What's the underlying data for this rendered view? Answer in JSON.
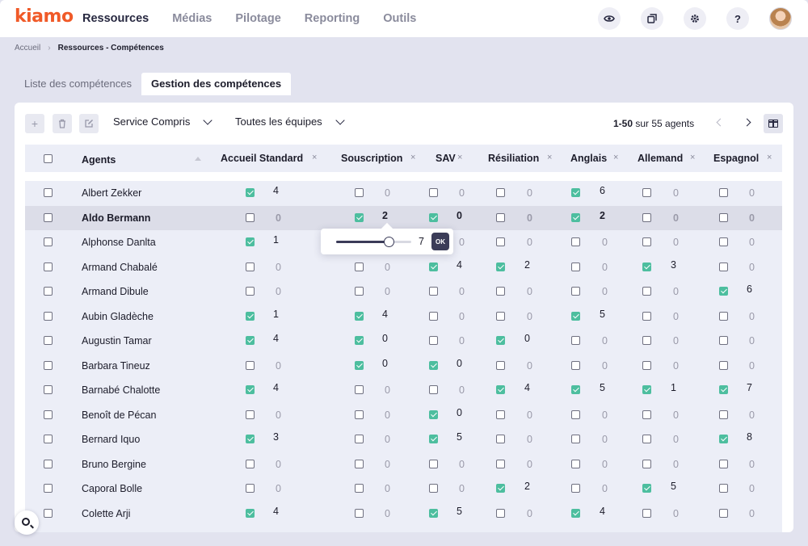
{
  "app": {
    "logo": "kiamo"
  },
  "nav": [
    "Ressources",
    "Médias",
    "Pilotage",
    "Reporting",
    "Outils"
  ],
  "icons": {
    "eye": "eye-icon",
    "windows": "windows-icon",
    "gear": "gear-icon",
    "help": "help-icon",
    "search": "search-icon",
    "columns": "columns-icon",
    "add": "plus-icon",
    "delete": "trash-icon",
    "edit": "edit-icon"
  },
  "top": {
    "help_label": "?"
  },
  "breadcrumb": {
    "home": "Accueil",
    "current": "Ressources - Compétences"
  },
  "tabs": [
    "Liste des compétences",
    "Gestion des compétences"
  ],
  "toolbar": {
    "service": "Service Compris",
    "teams": "Toutes les équipes",
    "pagination_range": "1-50",
    "pagination_suffix": "sur 55 agents"
  },
  "table": {
    "agent_header": "Agents",
    "columns": [
      "Accueil Standard",
      "Souscription",
      "SAV",
      "Résiliation",
      "Anglais",
      "Allemand",
      "Espagnol"
    ],
    "rows": [
      {
        "name": "Albert Zekker",
        "cells": [
          [
            1,
            "4"
          ],
          [
            0,
            "0"
          ],
          [
            0,
            "0"
          ],
          [
            0,
            "0"
          ],
          [
            1,
            "6"
          ],
          [
            0,
            "0"
          ],
          [
            0,
            "0"
          ]
        ]
      },
      {
        "name": "Aldo Bermann",
        "cells": [
          [
            0,
            "0"
          ],
          [
            1,
            "2"
          ],
          [
            1,
            "0"
          ],
          [
            0,
            "0"
          ],
          [
            1,
            "2"
          ],
          [
            0,
            "0"
          ],
          [
            0,
            "0"
          ]
        ]
      },
      {
        "name": "Alphonse Danlta",
        "cells": [
          [
            1,
            "1"
          ],
          [
            0,
            "0"
          ],
          [
            0,
            "0"
          ],
          [
            0,
            "0"
          ],
          [
            0,
            "0"
          ],
          [
            0,
            "0"
          ],
          [
            0,
            "0"
          ]
        ]
      },
      {
        "name": "Armand Chabalé",
        "cells": [
          [
            0,
            "0"
          ],
          [
            0,
            "0"
          ],
          [
            1,
            "4"
          ],
          [
            1,
            "2"
          ],
          [
            0,
            "0"
          ],
          [
            1,
            "3"
          ],
          [
            0,
            "0"
          ]
        ]
      },
      {
        "name": "Armand Dibule",
        "cells": [
          [
            0,
            "0"
          ],
          [
            0,
            "0"
          ],
          [
            0,
            "0"
          ],
          [
            0,
            "0"
          ],
          [
            0,
            "0"
          ],
          [
            0,
            "0"
          ],
          [
            1,
            "6"
          ]
        ]
      },
      {
        "name": "Aubin Gladèche",
        "cells": [
          [
            1,
            "1"
          ],
          [
            1,
            "4"
          ],
          [
            0,
            "0"
          ],
          [
            0,
            "0"
          ],
          [
            1,
            "5"
          ],
          [
            0,
            "0"
          ],
          [
            0,
            "0"
          ]
        ]
      },
      {
        "name": "Augustin Tamar",
        "cells": [
          [
            1,
            "4"
          ],
          [
            1,
            "0"
          ],
          [
            0,
            "0"
          ],
          [
            1,
            "0"
          ],
          [
            0,
            "0"
          ],
          [
            0,
            "0"
          ],
          [
            0,
            "0"
          ]
        ]
      },
      {
        "name": "Barbara Tineuz",
        "cells": [
          [
            0,
            "0"
          ],
          [
            1,
            "0"
          ],
          [
            1,
            "0"
          ],
          [
            0,
            "0"
          ],
          [
            0,
            "0"
          ],
          [
            0,
            "0"
          ],
          [
            0,
            "0"
          ]
        ]
      },
      {
        "name": "Barnabé Chalotte",
        "cells": [
          [
            1,
            "4"
          ],
          [
            0,
            "0"
          ],
          [
            0,
            "0"
          ],
          [
            1,
            "4"
          ],
          [
            1,
            "5"
          ],
          [
            1,
            "1"
          ],
          [
            1,
            "7"
          ]
        ]
      },
      {
        "name": "Benoît de Pécan",
        "cells": [
          [
            0,
            "0"
          ],
          [
            0,
            "0"
          ],
          [
            1,
            "0"
          ],
          [
            0,
            "0"
          ],
          [
            0,
            "0"
          ],
          [
            0,
            "0"
          ],
          [
            0,
            "0"
          ]
        ]
      },
      {
        "name": "Bernard Iquo",
        "cells": [
          [
            1,
            "3"
          ],
          [
            0,
            "0"
          ],
          [
            1,
            "5"
          ],
          [
            0,
            "0"
          ],
          [
            0,
            "0"
          ],
          [
            0,
            "0"
          ],
          [
            1,
            "8"
          ]
        ]
      },
      {
        "name": "Bruno Bergine",
        "cells": [
          [
            0,
            "0"
          ],
          [
            0,
            "0"
          ],
          [
            0,
            "0"
          ],
          [
            0,
            "0"
          ],
          [
            0,
            "0"
          ],
          [
            0,
            "0"
          ],
          [
            0,
            "0"
          ]
        ]
      },
      {
        "name": "Caporal Bolle",
        "cells": [
          [
            0,
            "0"
          ],
          [
            0,
            "0"
          ],
          [
            0,
            "0"
          ],
          [
            1,
            "2"
          ],
          [
            0,
            "0"
          ],
          [
            1,
            "5"
          ],
          [
            0,
            "0"
          ]
        ]
      },
      {
        "name": "Colette Arji",
        "cells": [
          [
            1,
            "4"
          ],
          [
            0,
            "0"
          ],
          [
            1,
            "5"
          ],
          [
            0,
            "0"
          ],
          [
            1,
            "4"
          ],
          [
            0,
            "0"
          ],
          [
            0,
            "0"
          ]
        ]
      }
    ],
    "highlighted_row": 1
  },
  "popup": {
    "value": "7",
    "slider_fraction": 0.7,
    "ok_label": "OK"
  },
  "colors": {
    "accent": "#f05a28",
    "check": "#4dbe9f",
    "dark": "#3b3c58"
  }
}
